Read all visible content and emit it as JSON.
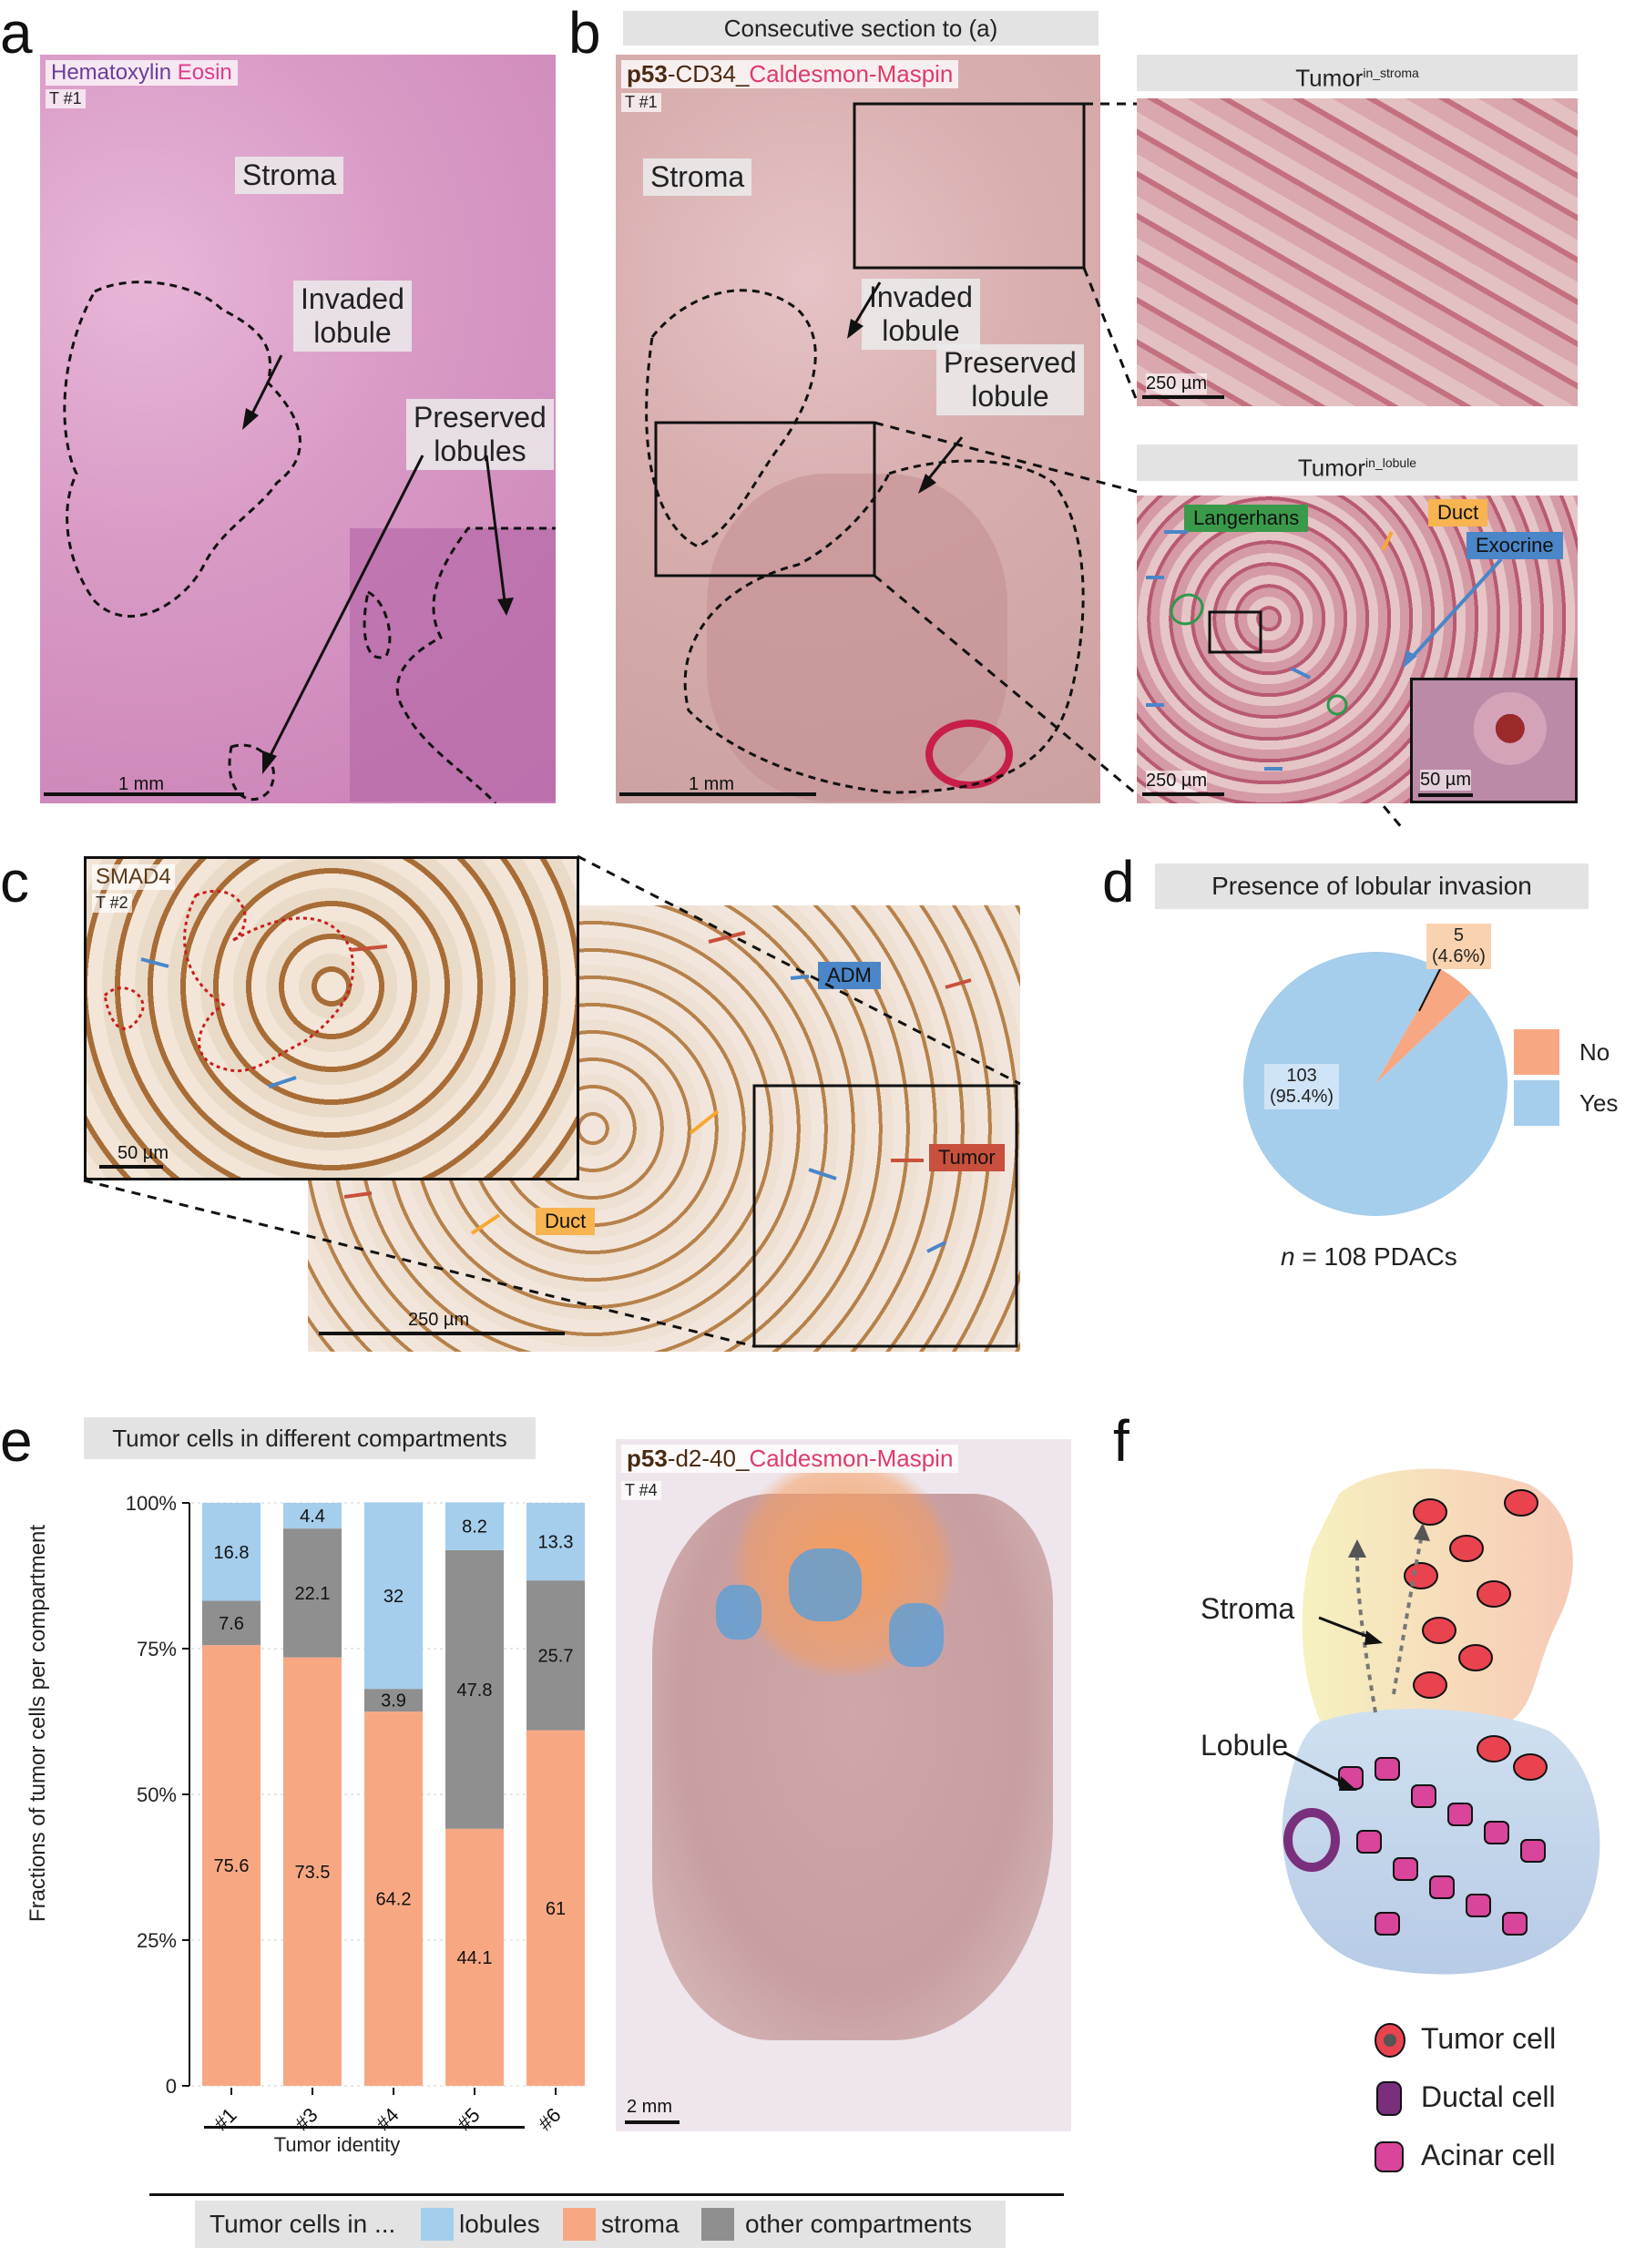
{
  "panels": {
    "a": "a",
    "b": "b",
    "c": "c",
    "d": "d",
    "e": "e",
    "f": "f"
  },
  "panel_a": {
    "stain_h": "Hematoxylin",
    "stain_e": "Eosin",
    "tumor_id": "T #1",
    "stroma": "Stroma",
    "invaded": "Invaded\nlobule",
    "preserved": "Preserved\nlobules",
    "scale": "1 mm"
  },
  "panel_b": {
    "header": "Consecutive section to (a)",
    "stain_p53": "p53",
    "stain_cd34": "-CD34_",
    "stain_rest": "Caldesmon-Maspin",
    "tumor_id": "T #1",
    "stroma": "Stroma",
    "invaded": "Invaded\nlobule",
    "preserved": "Preserved\nlobule",
    "scale": "1 mm",
    "inset1_title_base": "Tumor",
    "inset1_title_sup": "in_stroma",
    "inset1_scale": "250 µm",
    "inset2_title_base": "Tumor",
    "inset2_title_sup": "in_lobule",
    "inset2_scale": "250 µm",
    "langerhans": "Langerhans",
    "duct": "Duct",
    "exocrine": "Exocrine",
    "zoom_scale": "50 µm"
  },
  "panel_c": {
    "stain": "SMAD4",
    "tumor_id": "T #2",
    "inset_scale": "50 µm",
    "scale": "250 µm",
    "adm": "ADM",
    "tumor": "Tumor",
    "duct": "Duct"
  },
  "panel_d": {
    "title": "Presence of lobular invasion",
    "slices": [
      {
        "label": "No",
        "count": 5,
        "pct": "(4.6%)",
        "color": "#f7a883"
      },
      {
        "label": "Yes",
        "count": 103,
        "pct": "(95.4%)",
        "color": "#a5cdec"
      }
    ],
    "n_prefix": "n",
    "n_text": " = 108 PDACs"
  },
  "panel_e": {
    "title": "Tumor cells in different compartments",
    "stain_p53": "p53",
    "stain_d240": "-d2-40_",
    "stain_rest": "Caldesmon-Maspin",
    "tumor_id": "T #4",
    "map_scale": "2 mm",
    "legend_prefix": "Tumor cells in ...",
    "legend": [
      {
        "label": "lobules",
        "color": "#a5cdec"
      },
      {
        "label": "stroma",
        "color": "#f7a883"
      },
      {
        "label": "other compartments",
        "color": "#8f8f8f"
      }
    ]
  },
  "chart_data": {
    "type": "bar",
    "stacked": true,
    "categories": [
      "#1",
      "#3",
      "#4",
      "#5",
      "#6"
    ],
    "series": [
      {
        "name": "stroma",
        "color": "#f7a883",
        "values": [
          75.6,
          73.5,
          64.2,
          44.1,
          61
        ]
      },
      {
        "name": "other compartments",
        "color": "#8f8f8f",
        "values": [
          7.6,
          22.1,
          3.9,
          47.8,
          25.7
        ]
      },
      {
        "name": "lobules",
        "color": "#a5cdec",
        "values": [
          16.8,
          4.4,
          32,
          8.2,
          13.3
        ]
      }
    ],
    "xlabel": "Tumor identity",
    "ylabel": "Fractions of tumor cells per compartment",
    "yticks": [
      "0",
      "25%",
      "50%",
      "75%",
      "100%"
    ],
    "ylim": [
      0,
      100
    ],
    "grid": true
  },
  "panel_f": {
    "stroma": "Stroma",
    "lobule": "Lobule",
    "legend": [
      {
        "label": "Tumor cell",
        "color": "#e8434f"
      },
      {
        "label": "Ductal cell",
        "color": "#7a2f7d"
      },
      {
        "label": "Acinar cell",
        "color": "#d8459a"
      }
    ]
  }
}
